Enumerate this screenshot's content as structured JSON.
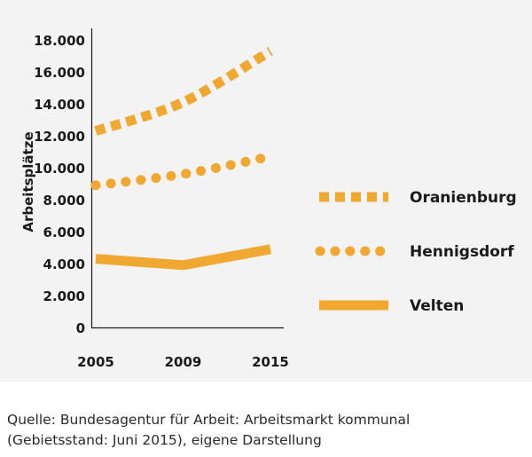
{
  "chart_data": {
    "type": "line",
    "x": [
      "2005",
      "2009",
      "2015"
    ],
    "ylabel": "Arbeitsplätze",
    "ylim": [
      0,
      18000
    ],
    "yticks": [
      0,
      2000,
      4000,
      6000,
      8000,
      10000,
      12000,
      14000,
      16000,
      18000
    ],
    "ytick_labels": [
      "0",
      "2.000",
      "4.000",
      "6.000",
      "8.000",
      "10.000",
      "12.000",
      "14.000",
      "16.000",
      "18.000"
    ],
    "grid": false,
    "legend_position": "right",
    "series": [
      {
        "name": "Oranienburg",
        "values": [
          12300,
          14100,
          17300
        ],
        "style": "square-dotted",
        "color": "#f0a830"
      },
      {
        "name": "Hennigsdorf",
        "values": [
          8900,
          9600,
          10700
        ],
        "style": "round-dotted",
        "color": "#f0a830"
      },
      {
        "name": "Velten",
        "values": [
          4300,
          3900,
          4900
        ],
        "style": "solid",
        "color": "#f0a830"
      }
    ]
  },
  "source": {
    "line1": "Quelle: Bundesagentur für Arbeit: Arbeitsmarkt kommunal",
    "line2": "(Gebietsstand: Juni 2015), eigene Darstellung"
  }
}
